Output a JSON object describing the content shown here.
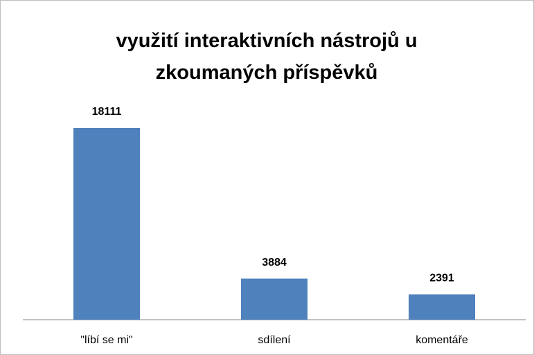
{
  "chart_data": {
    "type": "bar",
    "title": "využití interaktivních nástrojů u zkoumaných příspěvků",
    "categories": [
      "\"líbí se mi\"",
      "sdílení",
      "komentáře"
    ],
    "values": [
      18111,
      3884,
      2391
    ],
    "color": "#4f81bd",
    "ylim": [
      0,
      20000
    ]
  }
}
